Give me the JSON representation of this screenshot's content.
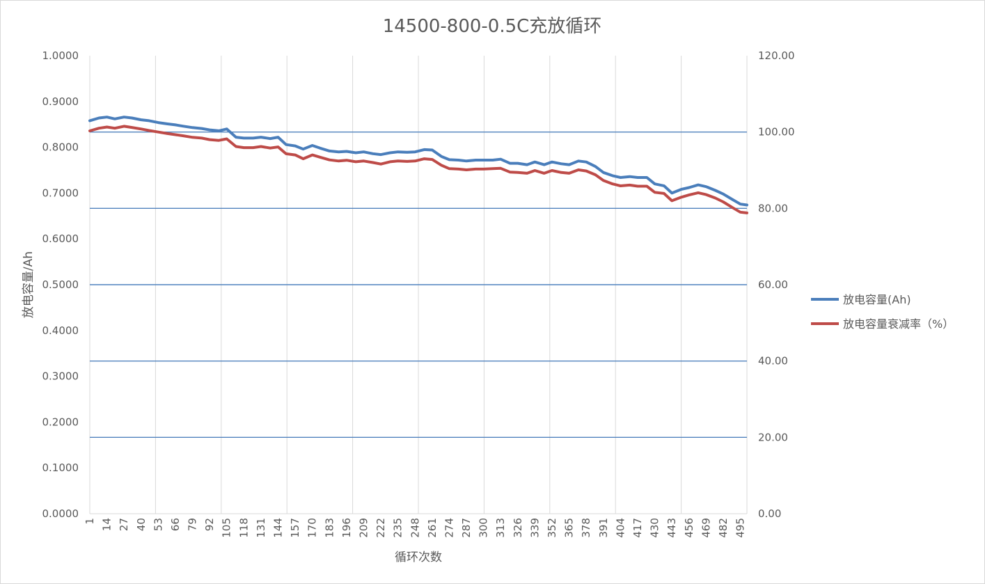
{
  "chart_data": {
    "type": "line",
    "title": "14500-800-0.5C充放循环",
    "xlabel": "循环次数",
    "ylabel": "放电容量/Ah",
    "y2label": "",
    "x_tick_labels": [
      "1",
      "14",
      "27",
      "40",
      "53",
      "66",
      "79",
      "92",
      "105",
      "118",
      "131",
      "144",
      "157",
      "170",
      "183",
      "196",
      "209",
      "222",
      "235",
      "248",
      "261",
      "274",
      "287",
      "300",
      "313",
      "326",
      "339",
      "352",
      "365",
      "378",
      "391",
      "404",
      "417",
      "430",
      "443",
      "456",
      "469",
      "482",
      "495"
    ],
    "xlim": [
      1,
      500
    ],
    "ylim": [
      0,
      1.0
    ],
    "y_tick_labels": [
      "0.0000",
      "0.1000",
      "0.2000",
      "0.3000",
      "0.4000",
      "0.5000",
      "0.6000",
      "0.7000",
      "0.8000",
      "0.9000",
      "1.0000"
    ],
    "y2lim": [
      0,
      120
    ],
    "y2_tick_labels": [
      "0.00",
      "20.00",
      "40.00",
      "60.00",
      "80.00",
      "100.00",
      "120.00"
    ],
    "grid": "vertical gridlines; horizontal lines at right-axis ticks",
    "legend_position": "right",
    "series": [
      {
        "name": "放电容量(Ah)",
        "axis": "left",
        "color": "#4a7ebb",
        "x": [
          1,
          8,
          14,
          20,
          27,
          33,
          40,
          46,
          53,
          60,
          66,
          72,
          79,
          86,
          92,
          99,
          105,
          112,
          118,
          125,
          131,
          138,
          144,
          150,
          157,
          163,
          170,
          176,
          183,
          190,
          196,
          203,
          209,
          216,
          222,
          229,
          235,
          242,
          248,
          255,
          261,
          268,
          274,
          281,
          287,
          294,
          300,
          307,
          313,
          320,
          326,
          333,
          339,
          346,
          352,
          359,
          365,
          372,
          378,
          385,
          391,
          398,
          404,
          411,
          417,
          424,
          430,
          437,
          443,
          450,
          456,
          463,
          469,
          476,
          482,
          489,
          495,
          500
        ],
        "values": [
          0.858,
          0.864,
          0.866,
          0.862,
          0.866,
          0.864,
          0.86,
          0.858,
          0.854,
          0.851,
          0.849,
          0.846,
          0.843,
          0.841,
          0.838,
          0.836,
          0.84,
          0.822,
          0.82,
          0.82,
          0.822,
          0.819,
          0.822,
          0.806,
          0.803,
          0.796,
          0.804,
          0.798,
          0.792,
          0.79,
          0.791,
          0.788,
          0.79,
          0.786,
          0.784,
          0.788,
          0.79,
          0.789,
          0.79,
          0.795,
          0.794,
          0.78,
          0.773,
          0.772,
          0.77,
          0.772,
          0.772,
          0.772,
          0.774,
          0.765,
          0.765,
          0.762,
          0.768,
          0.762,
          0.768,
          0.764,
          0.762,
          0.77,
          0.768,
          0.758,
          0.745,
          0.738,
          0.734,
          0.736,
          0.734,
          0.734,
          0.72,
          0.716,
          0.7,
          0.708,
          0.712,
          0.718,
          0.714,
          0.706,
          0.698,
          0.686,
          0.676,
          0.674
        ]
      },
      {
        "name": "放电容量衰减率（%）",
        "axis": "right",
        "color": "#be4b48",
        "x": [
          1,
          8,
          14,
          20,
          27,
          33,
          40,
          46,
          53,
          60,
          66,
          72,
          79,
          86,
          92,
          99,
          105,
          112,
          118,
          125,
          131,
          138,
          144,
          150,
          157,
          163,
          170,
          176,
          183,
          190,
          196,
          203,
          209,
          216,
          222,
          229,
          235,
          242,
          248,
          255,
          261,
          268,
          274,
          281,
          287,
          294,
          300,
          307,
          313,
          320,
          326,
          333,
          339,
          346,
          352,
          359,
          365,
          372,
          378,
          385,
          391,
          398,
          404,
          411,
          417,
          424,
          430,
          437,
          443,
          450,
          456,
          463,
          469,
          476,
          482,
          489,
          495,
          500
        ],
        "values": [
          100.3,
          101.0,
          101.3,
          101.0,
          101.5,
          101.2,
          100.8,
          100.4,
          100.0,
          99.6,
          99.3,
          99.0,
          98.6,
          98.4,
          98.0,
          97.8,
          98.2,
          96.2,
          95.9,
          95.9,
          96.2,
          95.8,
          96.1,
          94.3,
          94.0,
          93.0,
          94.0,
          93.4,
          92.7,
          92.4,
          92.6,
          92.2,
          92.4,
          92.0,
          91.6,
          92.2,
          92.4,
          92.3,
          92.4,
          93.0,
          92.8,
          91.3,
          90.4,
          90.3,
          90.1,
          90.3,
          90.3,
          90.4,
          90.5,
          89.5,
          89.4,
          89.2,
          89.9,
          89.2,
          89.9,
          89.4,
          89.2,
          90.1,
          89.8,
          88.8,
          87.3,
          86.4,
          85.9,
          86.1,
          85.8,
          85.8,
          84.2,
          83.9,
          82.0,
          82.9,
          83.5,
          84.1,
          83.6,
          82.7,
          81.7,
          80.2,
          79.0,
          78.8
        ]
      }
    ]
  }
}
